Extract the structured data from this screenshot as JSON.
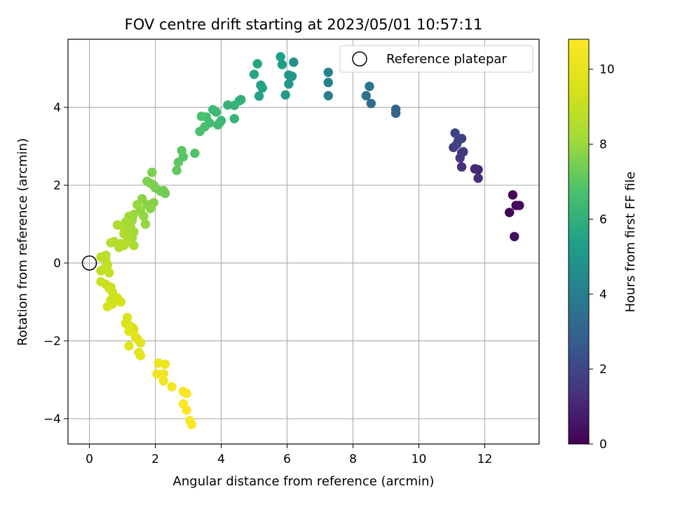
{
  "chart_data": {
    "type": "scatter",
    "title": "FOV centre drift starting at 2023/05/01 10:57:11",
    "xlabel": "Angular distance from reference (arcmin)",
    "ylabel": "Rotation from reference (arcmin)",
    "xlim": [
      -0.65,
      13.65
    ],
    "ylim": [
      -4.65,
      5.75
    ],
    "xticks": [
      0,
      2,
      4,
      6,
      8,
      10,
      12
    ],
    "yticks": [
      -4,
      -2,
      0,
      2,
      4
    ],
    "grid": true,
    "legend": {
      "placement": "upper-right",
      "entries": [
        "Reference platepar"
      ]
    },
    "reference_point": {
      "x": 0,
      "y": 0
    },
    "colorbar": {
      "label": "Hours from first FF file",
      "colormap": "viridis",
      "range": [
        0,
        10.8
      ],
      "ticks": [
        0,
        2,
        4,
        6,
        8,
        10
      ]
    },
    "series": [
      {
        "points": [
          [
            12.85,
            1.75,
            0.0
          ],
          [
            12.75,
            1.3,
            0.1
          ],
          [
            12.95,
            1.48,
            0.2
          ],
          [
            13.05,
            1.48,
            0.3
          ],
          [
            12.9,
            0.68,
            0.4
          ],
          [
            11.8,
            2.4,
            1.0
          ],
          [
            11.7,
            2.42,
            1.1
          ],
          [
            11.8,
            2.18,
            1.2
          ],
          [
            11.3,
            2.47,
            1.3
          ],
          [
            11.3,
            2.83,
            1.4
          ],
          [
            11.35,
            2.86,
            1.5
          ],
          [
            11.25,
            2.7,
            1.6
          ],
          [
            11.05,
            2.97,
            1.7
          ],
          [
            11.2,
            3.15,
            1.75
          ],
          [
            11.3,
            3.2,
            1.8
          ],
          [
            11.15,
            3.05,
            1.85
          ],
          [
            11.1,
            3.34,
            1.9
          ],
          [
            9.3,
            3.95,
            3.0
          ],
          [
            9.3,
            3.85,
            3.1
          ],
          [
            8.55,
            4.1,
            3.4
          ],
          [
            8.4,
            4.3,
            3.5
          ],
          [
            8.5,
            4.54,
            3.6
          ],
          [
            7.25,
            4.3,
            4.0
          ],
          [
            7.25,
            4.64,
            4.1
          ],
          [
            7.25,
            4.9,
            4.2
          ],
          [
            6.2,
            5.16,
            4.8
          ],
          [
            6.05,
            4.83,
            4.9
          ],
          [
            6.15,
            4.8,
            5.0
          ],
          [
            6.05,
            4.6,
            5.1
          ],
          [
            5.95,
            4.32,
            5.2
          ],
          [
            5.85,
            5.1,
            5.3
          ],
          [
            5.8,
            5.3,
            5.35
          ],
          [
            5.2,
            4.57,
            5.4
          ],
          [
            5.25,
            4.5,
            5.45
          ],
          [
            5.15,
            4.29,
            5.5
          ],
          [
            5.1,
            5.12,
            5.55
          ],
          [
            5.0,
            4.85,
            5.6
          ],
          [
            4.6,
            4.2,
            6.0
          ],
          [
            4.55,
            4.17,
            6.05
          ],
          [
            4.4,
            4.05,
            6.1
          ],
          [
            4.2,
            4.06,
            6.15
          ],
          [
            4.4,
            3.71,
            6.2
          ],
          [
            4.0,
            3.66,
            6.3
          ],
          [
            3.95,
            3.6,
            6.35
          ],
          [
            3.85,
            3.88,
            6.4
          ],
          [
            3.75,
            3.94,
            6.45
          ],
          [
            3.9,
            3.55,
            6.5
          ],
          [
            3.65,
            3.6,
            6.55
          ],
          [
            3.55,
            3.75,
            6.6
          ],
          [
            3.5,
            3.5,
            6.65
          ],
          [
            3.4,
            3.77,
            6.7
          ],
          [
            3.35,
            3.38,
            6.75
          ],
          [
            3.2,
            2.82,
            6.85
          ],
          [
            2.85,
            2.73,
            6.9
          ],
          [
            2.8,
            2.89,
            7.0
          ],
          [
            2.7,
            2.59,
            7.05
          ],
          [
            2.65,
            2.38,
            7.1
          ],
          [
            2.25,
            1.86,
            7.3
          ],
          [
            2.3,
            1.79,
            7.35
          ],
          [
            2.15,
            1.85,
            7.4
          ],
          [
            2.0,
            1.93,
            7.45
          ],
          [
            1.95,
            2.0,
            7.5
          ],
          [
            1.85,
            2.05,
            7.55
          ],
          [
            1.9,
            2.33,
            7.55
          ],
          [
            1.75,
            2.1,
            7.6
          ],
          [
            1.95,
            1.55,
            7.65
          ],
          [
            1.75,
            1.5,
            7.7
          ],
          [
            1.85,
            1.4,
            7.75
          ],
          [
            1.6,
            1.65,
            7.8
          ],
          [
            1.65,
            1.2,
            7.85
          ],
          [
            1.7,
            1.0,
            7.9
          ],
          [
            1.55,
            1.35,
            7.9
          ],
          [
            1.45,
            1.5,
            7.95
          ],
          [
            1.35,
            1.25,
            8.0
          ],
          [
            1.3,
            1.1,
            8.05
          ],
          [
            1.2,
            1.2,
            8.1
          ],
          [
            1.25,
            0.95,
            8.1
          ],
          [
            1.35,
            0.8,
            8.15
          ],
          [
            1.1,
            1.05,
            8.2
          ],
          [
            1.15,
            0.85,
            8.25
          ],
          [
            1.3,
            0.65,
            8.3
          ],
          [
            1.35,
            0.45,
            8.35
          ],
          [
            1.0,
            0.95,
            8.4
          ],
          [
            0.85,
            0.98,
            8.45
          ],
          [
            1.05,
            0.75,
            8.5
          ],
          [
            1.15,
            0.55,
            8.5
          ],
          [
            0.95,
            0.5,
            8.55
          ],
          [
            0.9,
            0.4,
            8.6
          ],
          [
            0.75,
            0.55,
            8.6
          ],
          [
            0.65,
            0.52,
            8.65
          ],
          [
            1.05,
            0.45,
            8.65
          ],
          [
            0.5,
            0.2,
            8.7
          ],
          [
            0.35,
            0.15,
            8.75
          ],
          [
            0.5,
            0.05,
            8.8
          ],
          [
            0.55,
            -0.05,
            8.85
          ],
          [
            0.45,
            -0.15,
            8.9
          ],
          [
            0.35,
            -0.2,
            8.95
          ],
          [
            0.6,
            -0.25,
            9.0
          ],
          [
            0.35,
            -0.48,
            9.05
          ],
          [
            0.5,
            -0.55,
            9.1
          ],
          [
            0.65,
            -0.62,
            9.15
          ],
          [
            0.7,
            -0.75,
            9.2
          ],
          [
            0.6,
            -0.65,
            9.25
          ],
          [
            0.65,
            -0.95,
            9.3
          ],
          [
            0.7,
            -1.05,
            9.35
          ],
          [
            0.85,
            -0.9,
            9.35
          ],
          [
            0.95,
            -1.0,
            9.4
          ],
          [
            0.55,
            -1.12,
            9.4
          ],
          [
            1.15,
            -1.4,
            9.5
          ],
          [
            1.1,
            -1.55,
            9.55
          ],
          [
            1.2,
            -1.6,
            9.6
          ],
          [
            1.3,
            -1.65,
            9.62
          ],
          [
            1.35,
            -1.7,
            9.65
          ],
          [
            1.2,
            -1.75,
            9.7
          ],
          [
            1.4,
            -1.9,
            9.75
          ],
          [
            1.45,
            -1.95,
            9.78
          ],
          [
            1.55,
            -2.05,
            9.8
          ],
          [
            1.5,
            -2.3,
            9.85
          ],
          [
            1.55,
            -2.38,
            9.88
          ],
          [
            1.2,
            -2.13,
            9.9
          ],
          [
            2.1,
            -2.57,
            10.2
          ],
          [
            2.3,
            -2.6,
            10.25
          ],
          [
            2.25,
            -2.85,
            10.3
          ],
          [
            2.05,
            -2.85,
            10.35
          ],
          [
            2.25,
            -3.03,
            10.4
          ],
          [
            2.5,
            -3.18,
            10.45
          ],
          [
            2.85,
            -3.3,
            10.55
          ],
          [
            2.95,
            -3.35,
            10.6
          ],
          [
            2.85,
            -3.62,
            10.65
          ],
          [
            2.95,
            -3.78,
            10.7
          ],
          [
            3.05,
            -4.05,
            10.75
          ],
          [
            3.1,
            -4.15,
            10.8
          ]
        ]
      }
    ]
  }
}
